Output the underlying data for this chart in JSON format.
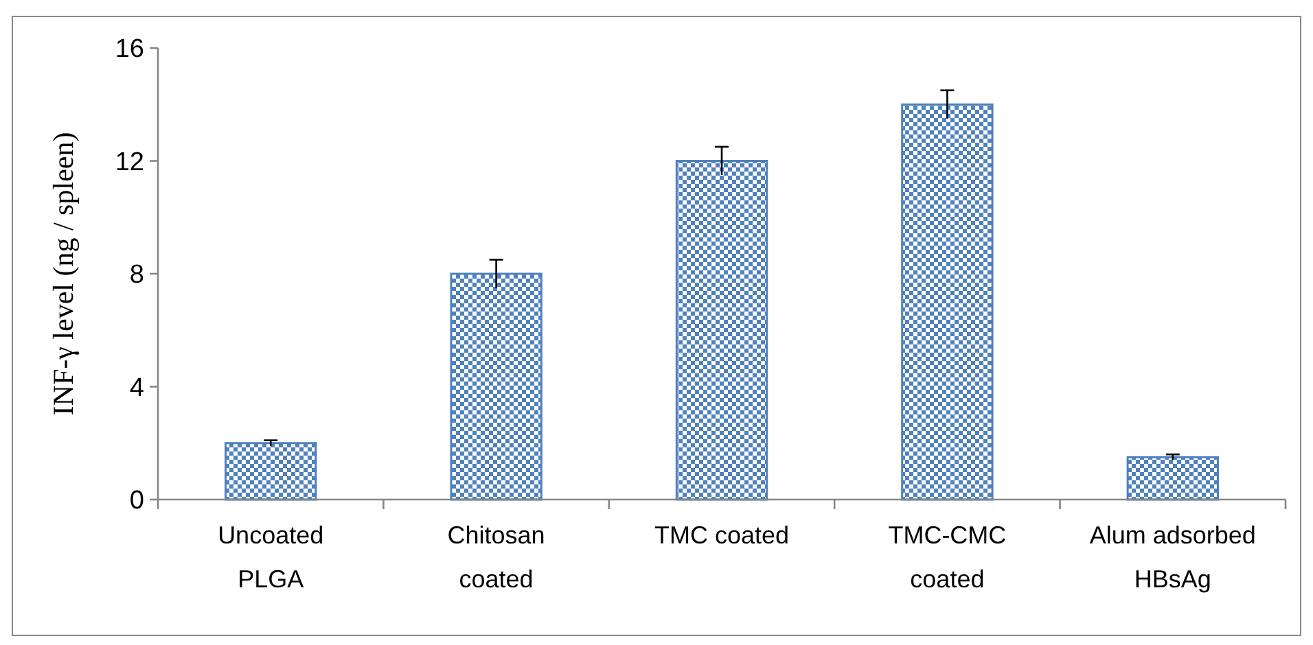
{
  "chart_data": {
    "type": "bar",
    "ylabel": "INF-γ level (ng / spleen)",
    "categories": [
      "Uncoated\nPLGA",
      "Chitosan\ncoated",
      "TMC coated",
      "TMC-CMC\ncoated",
      "Alum adsorbed\nHBsAg"
    ],
    "values": [
      2,
      8,
      12,
      14,
      1.5
    ],
    "errors": [
      0.1,
      0.5,
      0.5,
      0.5,
      0.1
    ],
    "color": "#4f81bd",
    "ylim": [
      0,
      16
    ],
    "yticks": [
      0,
      4,
      8,
      12,
      16
    ],
    "grid": false
  }
}
